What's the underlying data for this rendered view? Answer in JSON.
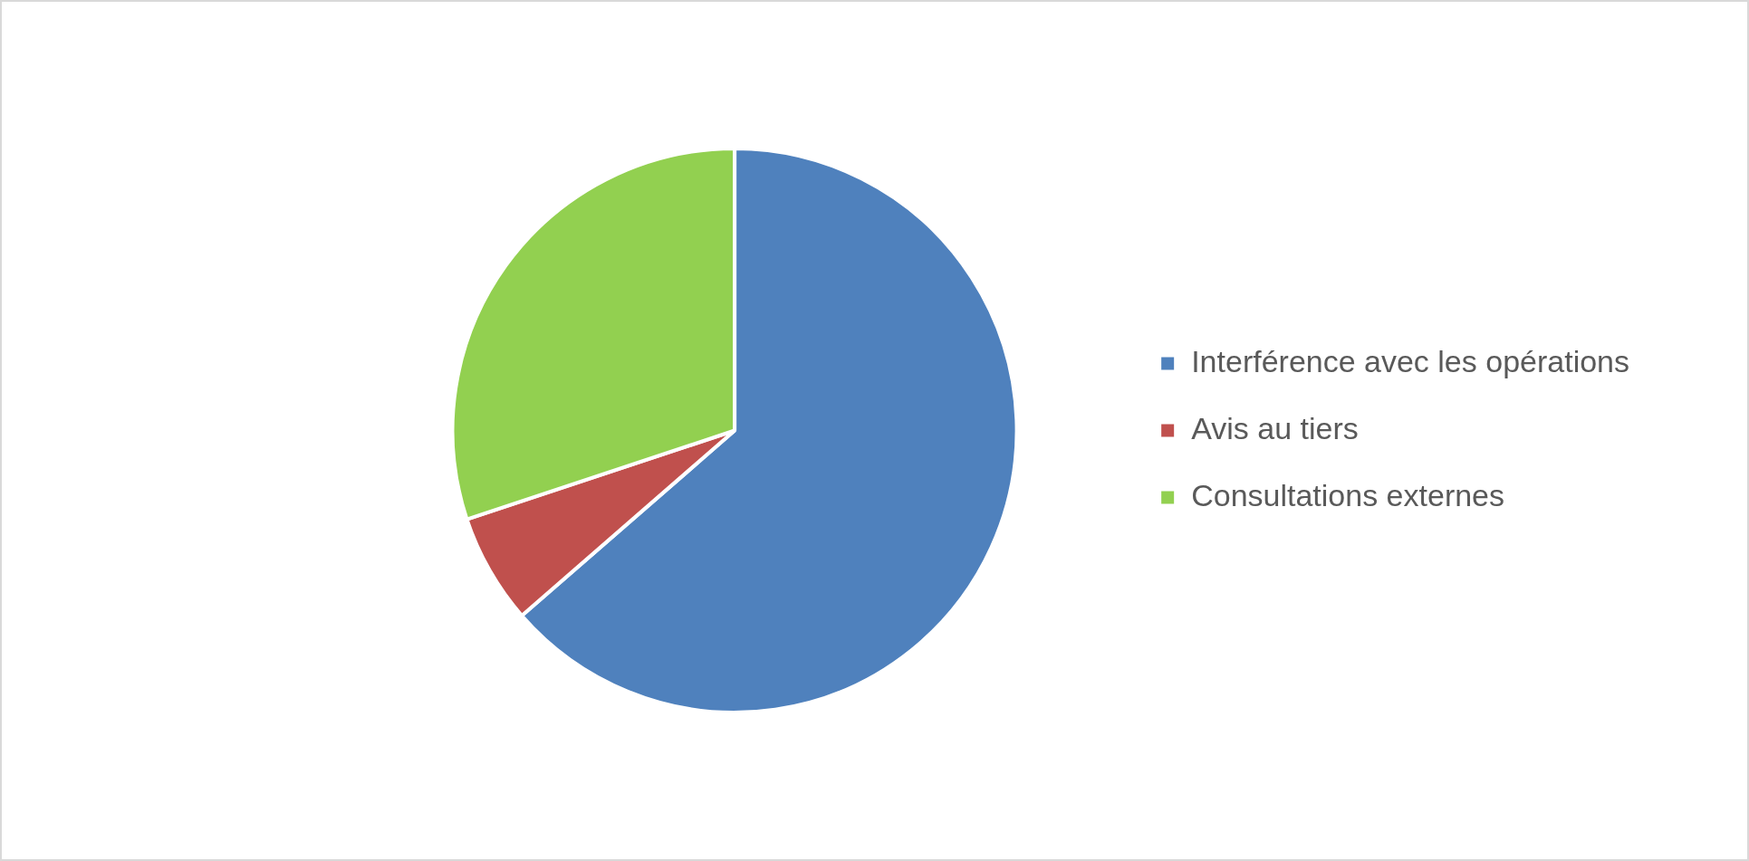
{
  "chart_data": {
    "type": "pie",
    "categories": [
      "Interférence avec les opérations",
      "Avis au tiers",
      "Consultations externes"
    ],
    "values": [
      63.6,
      6.3,
      30.1
    ],
    "colors": [
      "#4f81bd",
      "#c0504d",
      "#92d050"
    ],
    "legend": "right"
  }
}
